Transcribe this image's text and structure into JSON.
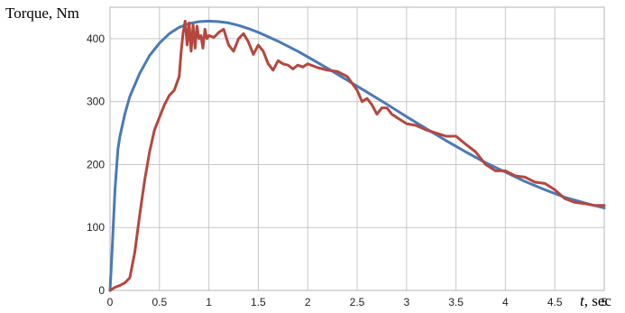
{
  "chart_data": {
    "type": "line",
    "ylabel": "Torque, Nm",
    "xlabel": {
      "var": "t",
      "rest": ", sec"
    },
    "xlim": [
      0,
      5
    ],
    "ylim": [
      0,
      450
    ],
    "x_ticks": [
      "0",
      "0.5",
      "1",
      "1.5",
      "2",
      "2.5",
      "3",
      "3.5",
      "4",
      "4.5",
      "5"
    ],
    "y_ticks": [
      "0",
      "100",
      "200",
      "300",
      "400"
    ],
    "x_tick_values": [
      0,
      0.5,
      1,
      1.5,
      2,
      2.5,
      3,
      3.5,
      4,
      4.5,
      5
    ],
    "y_tick_values": [
      0,
      100,
      200,
      300,
      400
    ],
    "grid": true,
    "series": [
      {
        "color": "#4a7ab5",
        "x": [
          0,
          0.02,
          0.05,
          0.08,
          0.1,
          0.15,
          0.2,
          0.3,
          0.4,
          0.5,
          0.6,
          0.7,
          0.8,
          0.9,
          1.0,
          1.1,
          1.2,
          1.3,
          1.4,
          1.5,
          1.6,
          1.7,
          1.8,
          1.9,
          2.0,
          2.2,
          2.4,
          2.6,
          2.8,
          3.0,
          3.2,
          3.4,
          3.6,
          3.8,
          4.0,
          4.2,
          4.4,
          4.6,
          4.8,
          5.0
        ],
        "y": [
          0,
          60,
          160,
          225,
          245,
          280,
          308,
          345,
          373,
          393,
          408,
          418,
          424,
          427,
          428,
          427,
          425,
          421,
          416,
          410,
          403,
          396,
          388,
          380,
          371,
          353,
          334,
          315,
          296,
          276,
          257,
          238,
          220,
          203,
          188,
          173,
          160,
          148,
          139,
          131
        ]
      },
      {
        "color": "#b5473f",
        "x": [
          0,
          0.05,
          0.1,
          0.15,
          0.2,
          0.25,
          0.3,
          0.35,
          0.4,
          0.45,
          0.5,
          0.55,
          0.6,
          0.65,
          0.7,
          0.72,
          0.74,
          0.76,
          0.78,
          0.8,
          0.82,
          0.84,
          0.86,
          0.88,
          0.9,
          0.92,
          0.94,
          0.96,
          0.98,
          1.0,
          1.05,
          1.1,
          1.15,
          1.2,
          1.25,
          1.3,
          1.35,
          1.4,
          1.45,
          1.5,
          1.55,
          1.6,
          1.65,
          1.7,
          1.75,
          1.8,
          1.85,
          1.9,
          1.95,
          2.0,
          2.1,
          2.2,
          2.3,
          2.4,
          2.5,
          2.55,
          2.6,
          2.65,
          2.7,
          2.75,
          2.8,
          2.85,
          2.9,
          2.95,
          3.0,
          3.1,
          3.2,
          3.3,
          3.4,
          3.5,
          3.6,
          3.7,
          3.8,
          3.9,
          4.0,
          4.1,
          4.2,
          4.3,
          4.4,
          4.5,
          4.6,
          4.7,
          4.8,
          4.9,
          5.0
        ],
        "y": [
          0,
          5,
          8,
          12,
          20,
          60,
          120,
          175,
          220,
          255,
          275,
          295,
          310,
          318,
          340,
          380,
          410,
          428,
          390,
          425,
          380,
          422,
          385,
          420,
          400,
          405,
          385,
          415,
          400,
          405,
          402,
          410,
          415,
          390,
          380,
          400,
          408,
          395,
          375,
          390,
          380,
          360,
          350,
          365,
          360,
          358,
          352,
          358,
          355,
          360,
          354,
          350,
          348,
          340,
          318,
          300,
          305,
          295,
          280,
          290,
          290,
          280,
          275,
          270,
          265,
          262,
          255,
          250,
          245,
          245,
          232,
          220,
          200,
          190,
          190,
          182,
          180,
          172,
          170,
          160,
          146,
          140,
          138,
          135,
          135
        ]
      }
    ]
  }
}
